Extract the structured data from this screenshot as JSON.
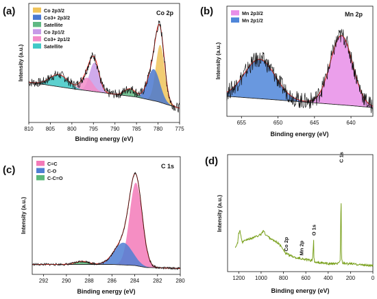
{
  "figure": {
    "colors": {
      "raw": "#111111",
      "envelope": "#e0261e",
      "background": "#222222",
      "co_2p32": "#f0c45a",
      "co2_2p32": "#4a78d0",
      "satellite": "#5fb882",
      "co_2p12": "#c79be8",
      "co2_2p12": "#f28cc8",
      "satellite2": "#40c8c6",
      "mn_2p32": "#e88ee8",
      "mn_2p12": "#4f86d9",
      "c1s_cc": "#f37ab8",
      "c1s_co": "#4f7fd3",
      "c1s_cco": "#5ab87a",
      "survey": "#7aa11e"
    }
  },
  "chart_data": [
    {
      "panel": "a",
      "type": "line",
      "panel_label": "(a)",
      "title": "Co 2p",
      "xlabel": "Binding energy (eV)",
      "ylabel": "Intensity (a.u.)",
      "x_reversed": true,
      "xlim": [
        810,
        775
      ],
      "xticks": [
        "810",
        "805",
        "800",
        "795",
        "790",
        "785",
        "780",
        "775"
      ],
      "legend_position": "top-left",
      "legend": [
        {
          "label": "Co 2p3/2",
          "color_key": "co_2p32"
        },
        {
          "label": "Co3+ 2p3/2",
          "color_key": "co2_2p32"
        },
        {
          "label": "Satellite",
          "color_key": "satellite"
        },
        {
          "label": "Co 2p1/2",
          "color_key": "co_2p12"
        },
        {
          "label": "Co3+ 2p1/2",
          "color_key": "co2_2p12"
        },
        {
          "label": "Satellite",
          "color_key": "satellite2"
        }
      ],
      "background_line": {
        "x": [
          810,
          800,
          790,
          785,
          780,
          778,
          775
        ],
        "y": [
          0.28,
          0.21,
          0.15,
          0.12,
          0.07,
          0.04,
          0.0
        ]
      },
      "peaks": [
        {
          "name": "Co 2p3/2",
          "center": 779.5,
          "fwhm": 2.4,
          "height": 0.62
        },
        {
          "name": "Co3+ 2p3/2",
          "center": 781.0,
          "fwhm": 3.4,
          "height": 0.34
        },
        {
          "name": "Satellite",
          "center": 786.5,
          "fwhm": 3.0,
          "height": 0.08
        },
        {
          "name": "Co 2p1/2",
          "center": 794.8,
          "fwhm": 2.6,
          "height": 0.31
        },
        {
          "name": "Co3+ 2p1/2",
          "center": 796.5,
          "fwhm": 3.2,
          "height": 0.14
        },
        {
          "name": "Satellite",
          "center": 803.0,
          "fwhm": 5.0,
          "height": 0.13
        }
      ]
    },
    {
      "panel": "b",
      "type": "line",
      "panel_label": "(b)",
      "title": "Mn 2p",
      "xlabel": "Binding energy (eV)",
      "ylabel": "Intensity (a.u.)",
      "x_reversed": true,
      "xlim": [
        657,
        637
      ],
      "xticks": [
        "655",
        "650",
        "645",
        "640"
      ],
      "legend_position": "top-left",
      "legend": [
        {
          "label": "Mn 2p3/2",
          "color_key": "mn_2p32"
        },
        {
          "label": "Mn 2p1/2",
          "color_key": "mn_2p12"
        }
      ],
      "background_line": {
        "x": [
          657,
          650,
          645,
          640,
          637
        ],
        "y": [
          0.12,
          0.08,
          0.05,
          0.02,
          0.0
        ]
      },
      "peaks": [
        {
          "name": "Mn 2p3/2",
          "center": 641.3,
          "fwhm": 3.6,
          "height": 0.74
        },
        {
          "name": "Mn 2p1/2",
          "center": 652.5,
          "fwhm": 5.0,
          "height": 0.42
        }
      ]
    },
    {
      "panel": "c",
      "type": "line",
      "panel_label": "(c)",
      "title": "C 1s",
      "xlabel": "Binding energy (eV)",
      "ylabel": "Intensity (a.u.)",
      "x_reversed": true,
      "xlim": [
        293,
        280
      ],
      "xticks": [
        "292",
        "290",
        "288",
        "286",
        "284",
        "282",
        "280"
      ],
      "legend_position": "top-left",
      "legend": [
        {
          "label": "C=C",
          "color_key": "c1s_cc"
        },
        {
          "label": "C-O",
          "color_key": "c1s_co"
        },
        {
          "label": "C-C=O",
          "color_key": "c1s_cco"
        }
      ],
      "background_line": {
        "x": [
          293,
          286,
          284,
          283,
          280
        ],
        "y": [
          0.04,
          0.04,
          0.03,
          0.01,
          0.0
        ]
      },
      "peaks": [
        {
          "name": "C=C",
          "center": 283.9,
          "fwhm": 1.3,
          "height": 0.82
        },
        {
          "name": "C-O",
          "center": 285.0,
          "fwhm": 1.9,
          "height": 0.22
        },
        {
          "name": "C-C=O",
          "center": 288.6,
          "fwhm": 1.4,
          "height": 0.03
        }
      ]
    },
    {
      "panel": "d",
      "type": "line",
      "panel_label": "(d)",
      "xlabel": "Binding energy (eV)",
      "ylabel": "Intensity (a.u.)",
      "x_reversed": true,
      "xlim": [
        1300,
        0
      ],
      "xticks": [
        "1200",
        "1000",
        "800",
        "600",
        "400",
        "200",
        "0"
      ],
      "annotations": [
        {
          "label": "Co 2p",
          "x": 780
        },
        {
          "label": "Mn 2p",
          "x": 642
        },
        {
          "label": "O 1s",
          "x": 530
        },
        {
          "label": "C 1s",
          "x": 285
        }
      ],
      "x": [
        1230,
        1210,
        1200,
        1190,
        1180,
        1170,
        1150,
        1100,
        1050,
        1000,
        980,
        960,
        900,
        850,
        800,
        782,
        780,
        778,
        760,
        700,
        650,
        642,
        640,
        600,
        560,
        540,
        532,
        530,
        528,
        520,
        480,
        440,
        400,
        360,
        320,
        300,
        292,
        287,
        285,
        283,
        278,
        270,
        250,
        200,
        150,
        100,
        50,
        0
      ],
      "y": [
        0.18,
        0.22,
        0.31,
        0.34,
        0.28,
        0.22,
        0.24,
        0.26,
        0.28,
        0.3,
        0.34,
        0.3,
        0.25,
        0.22,
        0.16,
        0.12,
        0.1,
        0.12,
        0.11,
        0.08,
        0.07,
        0.06,
        0.07,
        0.06,
        0.05,
        0.06,
        0.2,
        0.25,
        0.08,
        0.03,
        0.03,
        0.025,
        0.02,
        0.02,
        0.018,
        0.03,
        0.06,
        0.5,
        0.95,
        0.2,
        0.05,
        0.03,
        0.02,
        0.02,
        0.015,
        0.01,
        0.005,
        0.0
      ]
    }
  ]
}
